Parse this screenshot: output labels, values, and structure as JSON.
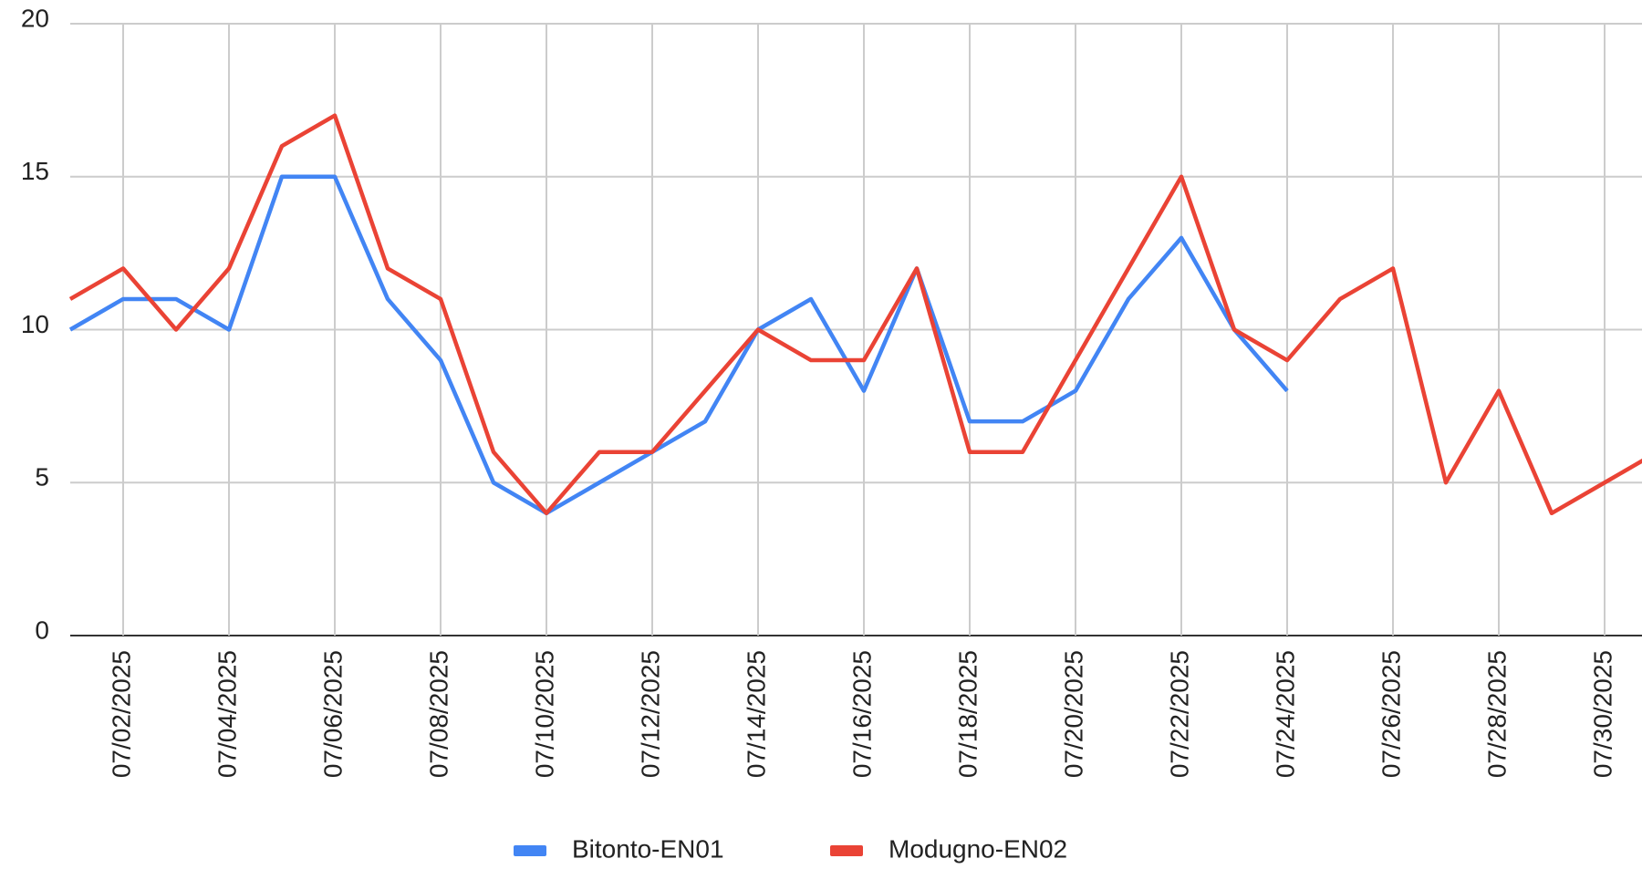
{
  "chart_data": {
    "type": "line",
    "categories": [
      null,
      "07/02/2025",
      null,
      "07/04/2025",
      null,
      "07/06/2025",
      null,
      "07/08/2025",
      null,
      "07/10/2025",
      null,
      "07/12/2025",
      null,
      "07/14/2025",
      null,
      "07/16/2025",
      null,
      "07/18/2025",
      null,
      "07/20/2025",
      null,
      "07/22/2025",
      null,
      "07/24/2025",
      null,
      "07/26/2025",
      null,
      "07/28/2025",
      null,
      "07/30/2025",
      null
    ],
    "series": [
      {
        "name": "Bitonto-EN01",
        "color": "#4285f4",
        "values": [
          10,
          11,
          11,
          10,
          15,
          15,
          11,
          9,
          5,
          4,
          5,
          6,
          7,
          10,
          11,
          8,
          12,
          7,
          7,
          8,
          11,
          13,
          10,
          8,
          null,
          null,
          null,
          null,
          null,
          null,
          null
        ]
      },
      {
        "name": "Modugno-EN02",
        "color": "#ea4335",
        "values": [
          11,
          12,
          10,
          12,
          16,
          17,
          12,
          11,
          6,
          4,
          6,
          6,
          8,
          10,
          9,
          9,
          12,
          6,
          6,
          9,
          12,
          15,
          10,
          9,
          11,
          12,
          5,
          8,
          4,
          5,
          6
        ]
      }
    ],
    "ylim": [
      0,
      20
    ],
    "yticks": [
      0,
      5,
      10,
      15,
      20
    ],
    "grid": true,
    "legend": "bottom"
  }
}
